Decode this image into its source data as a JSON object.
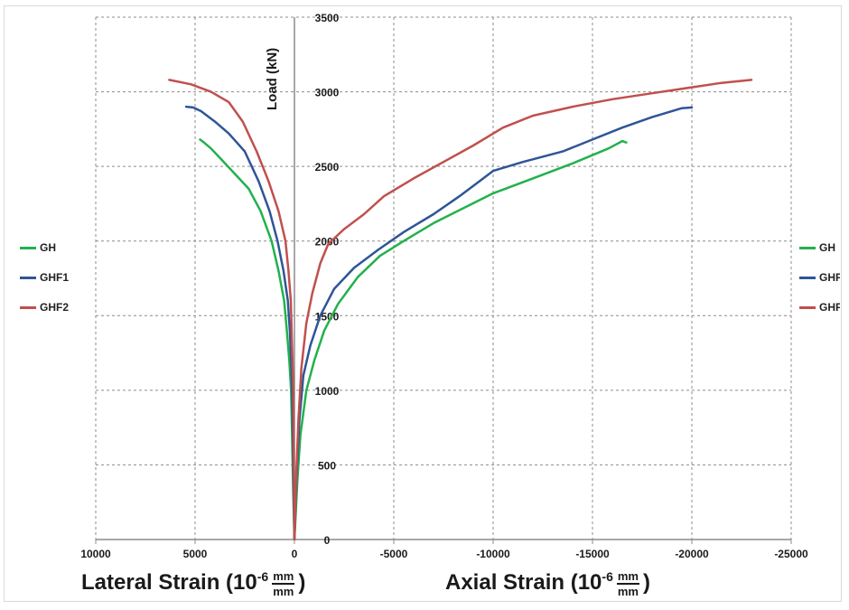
{
  "chart_data": {
    "type": "line",
    "ylabel": "Load (kN)",
    "xlim": [
      10000,
      -25000
    ],
    "ylim": [
      0,
      3500
    ],
    "x_ticks": [
      "10000",
      "5000",
      "0",
      "-5000",
      "-10000",
      "-15000",
      "-20000",
      "-25000"
    ],
    "y_ticks": [
      "0",
      "500",
      "1000",
      "1500",
      "2000",
      "2500",
      "3000",
      "3500"
    ],
    "grid": true,
    "lateral_title": {
      "prefix": "Lateral Strain (10",
      "exp": "-6",
      "num": "mm",
      "den": "mm",
      "suffix": ")"
    },
    "axial_title": {
      "prefix": "Axial Strain (10",
      "exp": "-6",
      "num": "mm",
      "den": "mm",
      "suffix": ")"
    },
    "legend_left": [
      {
        "name": "GH",
        "color": "#22b14c"
      },
      {
        "name": "GHF1",
        "color": "#2f5597"
      },
      {
        "name": "GHF2",
        "color": "#c0504d"
      }
    ],
    "legend_right": [
      {
        "name": "GH",
        "color": "#22b14c"
      },
      {
        "name": "GHF1",
        "color": "#2f5597"
      },
      {
        "name": "GHF2",
        "color": "#c0504d"
      }
    ],
    "series": [
      {
        "name": "GH",
        "color": "#22b14c",
        "lateral": [
          [
            0,
            0
          ],
          [
            60,
            300
          ],
          [
            120,
            700
          ],
          [
            170,
            1000
          ],
          [
            260,
            1200
          ],
          [
            380,
            1400
          ],
          [
            520,
            1600
          ],
          [
            800,
            1800
          ],
          [
            1150,
            2000
          ],
          [
            1700,
            2200
          ],
          [
            2300,
            2350
          ],
          [
            3000,
            2450
          ],
          [
            3700,
            2550
          ],
          [
            4200,
            2620
          ],
          [
            4550,
            2660
          ],
          [
            4750,
            2680
          ]
        ],
        "axial": [
          [
            0,
            0
          ],
          [
            -150,
            400
          ],
          [
            -300,
            700
          ],
          [
            -600,
            1000
          ],
          [
            -1000,
            1200
          ],
          [
            -1500,
            1400
          ],
          [
            -2200,
            1580
          ],
          [
            -3200,
            1760
          ],
          [
            -4300,
            1900
          ],
          [
            -5500,
            2000
          ],
          [
            -7000,
            2120
          ],
          [
            -8500,
            2220
          ],
          [
            -10000,
            2320
          ],
          [
            -12000,
            2420
          ],
          [
            -14000,
            2520
          ],
          [
            -15800,
            2620
          ],
          [
            -16500,
            2670
          ],
          [
            -16700,
            2660
          ]
        ]
      },
      {
        "name": "GHF1",
        "color": "#2f5597",
        "lateral": [
          [
            0,
            0
          ],
          [
            40,
            300
          ],
          [
            80,
            700
          ],
          [
            120,
            1000
          ],
          [
            170,
            1200
          ],
          [
            230,
            1400
          ],
          [
            330,
            1600
          ],
          [
            550,
            1800
          ],
          [
            850,
            2000
          ],
          [
            1250,
            2200
          ],
          [
            1800,
            2400
          ],
          [
            2500,
            2600
          ],
          [
            3300,
            2720
          ],
          [
            4000,
            2800
          ],
          [
            4700,
            2870
          ],
          [
            5100,
            2895
          ],
          [
            5450,
            2900
          ]
        ],
        "axial": [
          [
            0,
            0
          ],
          [
            -100,
            400
          ],
          [
            -250,
            800
          ],
          [
            -450,
            1100
          ],
          [
            -800,
            1300
          ],
          [
            -1300,
            1500
          ],
          [
            -2000,
            1680
          ],
          [
            -3000,
            1820
          ],
          [
            -4200,
            1940
          ],
          [
            -5500,
            2060
          ],
          [
            -7000,
            2180
          ],
          [
            -8300,
            2300
          ],
          [
            -9300,
            2400
          ],
          [
            -10000,
            2470
          ],
          [
            -11500,
            2530
          ],
          [
            -13500,
            2600
          ],
          [
            -15000,
            2680
          ],
          [
            -16500,
            2760
          ],
          [
            -18000,
            2830
          ],
          [
            -19500,
            2890
          ],
          [
            -20000,
            2895
          ]
        ]
      },
      {
        "name": "GHF2",
        "color": "#c0504d",
        "lateral": [
          [
            0,
            0
          ],
          [
            20,
            300
          ],
          [
            40,
            700
          ],
          [
            60,
            1000
          ],
          [
            100,
            1200
          ],
          [
            140,
            1400
          ],
          [
            180,
            1600
          ],
          [
            300,
            1800
          ],
          [
            450,
            2000
          ],
          [
            800,
            2200
          ],
          [
            1300,
            2400
          ],
          [
            1900,
            2600
          ],
          [
            2600,
            2800
          ],
          [
            3300,
            2930
          ],
          [
            4200,
            3000
          ],
          [
            5200,
            3050
          ],
          [
            6300,
            3080
          ]
        ],
        "axial": [
          [
            0,
            0
          ],
          [
            -80,
            400
          ],
          [
            -200,
            800
          ],
          [
            -350,
            1150
          ],
          [
            -600,
            1450
          ],
          [
            -900,
            1650
          ],
          [
            -1300,
            1850
          ],
          [
            -1700,
            1980
          ],
          [
            -2500,
            2080
          ],
          [
            -3500,
            2180
          ],
          [
            -4500,
            2300
          ],
          [
            -6000,
            2420
          ],
          [
            -7500,
            2530
          ],
          [
            -9000,
            2640
          ],
          [
            -10500,
            2760
          ],
          [
            -12000,
            2840
          ],
          [
            -14000,
            2900
          ],
          [
            -16000,
            2950
          ],
          [
            -18000,
            2990
          ],
          [
            -20000,
            3030
          ],
          [
            -21500,
            3060
          ],
          [
            -23000,
            3080
          ]
        ]
      }
    ]
  }
}
